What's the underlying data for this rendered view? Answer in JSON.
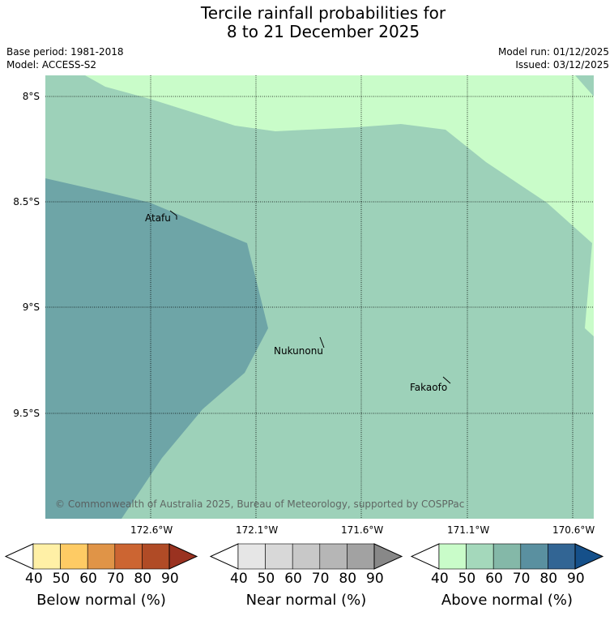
{
  "title_line1": "Tercile rainfall probabilities for",
  "title_line2": "8 to 21 December 2025",
  "base_period": "Base period: 1981-2018",
  "model": "Model: ACCESS-S2",
  "model_run": "Model run: 01/12/2025",
  "issued": "Issued: 03/12/2025",
  "lat_ticks": [
    "8°S",
    "8.5°S",
    "9°S",
    "9.5°S"
  ],
  "lon_ticks": [
    "172.6°W",
    "172.1°W",
    "171.6°W",
    "171.1°W",
    "170.6°W"
  ],
  "places": [
    "Atafu",
    "Nukunonu",
    "Fakaofo"
  ],
  "copyright": "© Commonwealth of Australia 2025, Bureau of Meteorology, supported by COSPPac",
  "colors": {
    "above_50": "#c9fcc9",
    "above_60": "#9dd1b9",
    "above_70": "#6ea5a7"
  },
  "colorbars": [
    {
      "title": "Below normal (%)",
      "ticks": [
        "40",
        "50",
        "60",
        "70",
        "80",
        "90"
      ],
      "colors": [
        "#ffffff",
        "#fff0a6",
        "#fecb64",
        "#e09447",
        "#cc6532",
        "#b04b26",
        "#9a3220"
      ]
    },
    {
      "title": "Near normal (%)",
      "ticks": [
        "40",
        "50",
        "60",
        "70",
        "80",
        "90"
      ],
      "colors": [
        "#ffffff",
        "#e6e6e6",
        "#d8d8d8",
        "#c8c8c8",
        "#b6b6b6",
        "#a2a2a2",
        "#888888"
      ]
    },
    {
      "title": "Above normal (%)",
      "ticks": [
        "40",
        "50",
        "60",
        "70",
        "80",
        "90"
      ],
      "colors": [
        "#ffffff",
        "#c9fcc9",
        "#a4d8bb",
        "#84b8a8",
        "#5a90a0",
        "#326594",
        "#15508a"
      ]
    }
  ]
}
